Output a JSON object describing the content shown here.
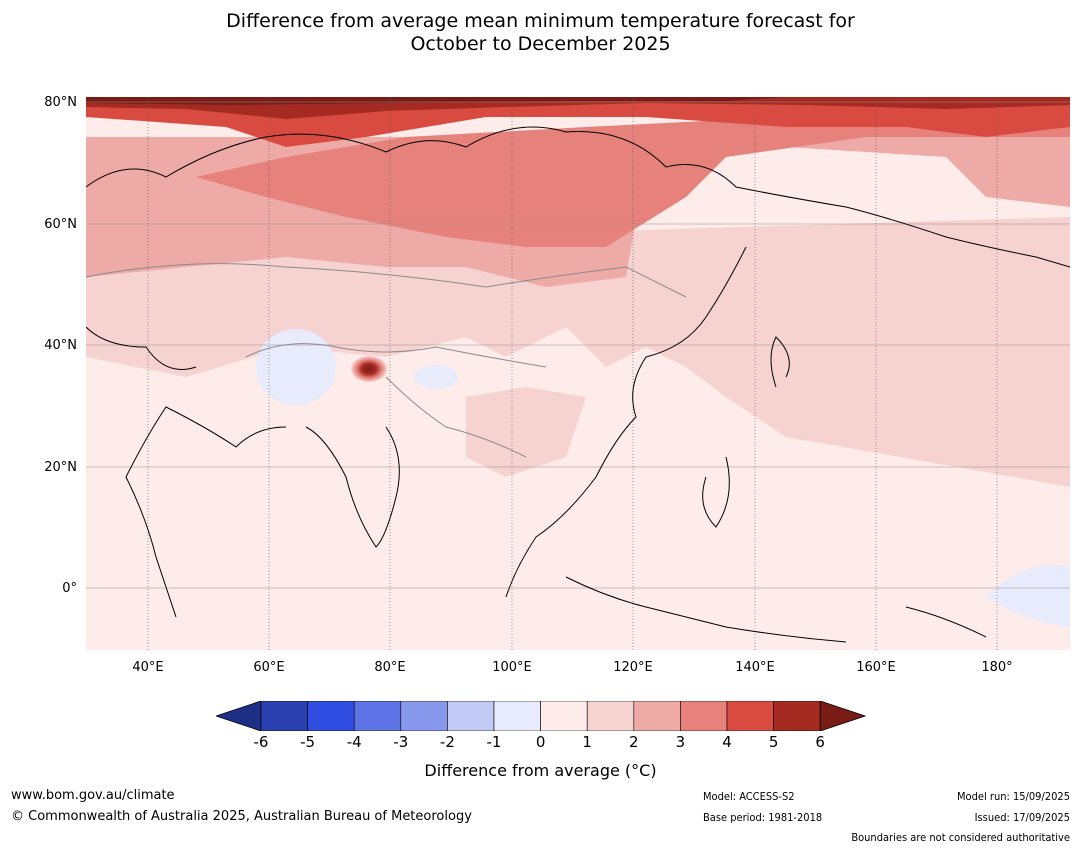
{
  "title": {
    "line1": "Difference from average mean minimum temperature forecast for",
    "line2": "October to December 2025"
  },
  "map": {
    "lat_labels": [
      "80°N",
      "60°N",
      "40°N",
      "20°N",
      "0°"
    ],
    "lon_labels": [
      "40°E",
      "60°E",
      "80°E",
      "100°E",
      "120°E",
      "140°E",
      "160°E",
      "180°"
    ],
    "region": "Asia",
    "land_color": "#fdecea",
    "ocean_color": "#fdeeec"
  },
  "colorbar": {
    "ticks": [
      "-6",
      "-5",
      "-4",
      "-3",
      "-2",
      "-1",
      "0",
      "1",
      "2",
      "3",
      "4",
      "5",
      "6"
    ],
    "colors": [
      "#1e2f86",
      "#2a3fb0",
      "#2f4de0",
      "#5e73e6",
      "#8898ec",
      "#c2c9f4",
      "#e8ebfb",
      "#fdecea",
      "#f6d3d0",
      "#eeaaa6",
      "#e6827b",
      "#d94a40",
      "#a52a22",
      "#7a1c16"
    ],
    "label": "Difference from average (°C)"
  },
  "footer": {
    "website": "www.bom.gov.au/climate",
    "copyright": "© Commonwealth of Australia 2025, Australian Bureau of Meteorology",
    "model": "Model: ACCESS-S2",
    "base_period": "Base period: 1981-2018",
    "model_run": "Model run: 15/09/2025",
    "issued": "Issued: 17/09/2025",
    "disclaimer": "Boundaries are not considered authoritative"
  }
}
